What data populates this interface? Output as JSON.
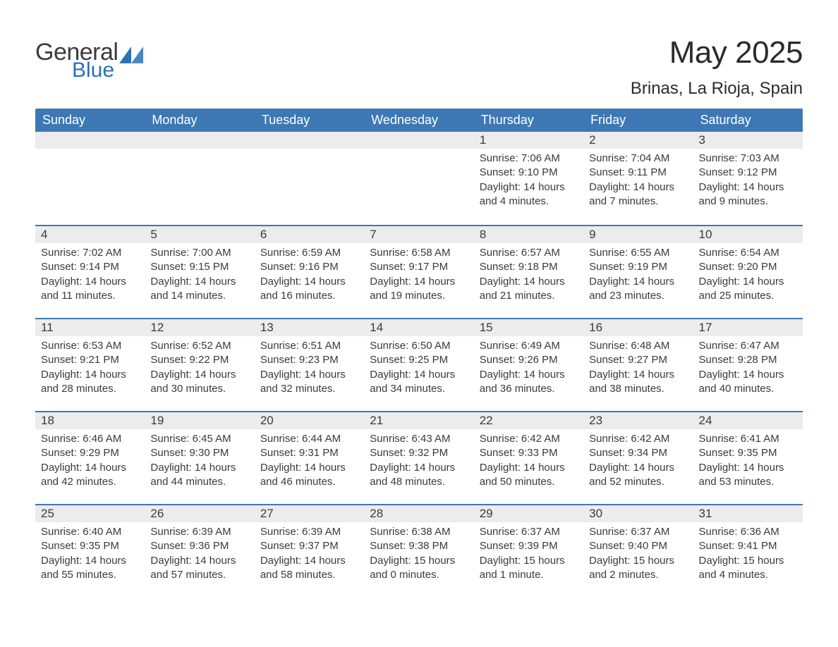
{
  "logo": {
    "word1": "General",
    "word2": "Blue",
    "tri_color": "#2a72b5"
  },
  "title": "May 2025",
  "location": "Brinas, La Rioja, Spain",
  "colors": {
    "header_bg": "#3d78b4",
    "header_text": "#ffffff",
    "daynum_bg": "#ececec",
    "row_border": "#3d78b4",
    "body_text": "#3a3a3a",
    "page_bg": "#ffffff"
  },
  "weekdays": [
    "Sunday",
    "Monday",
    "Tuesday",
    "Wednesday",
    "Thursday",
    "Friday",
    "Saturday"
  ],
  "weeks": [
    [
      null,
      null,
      null,
      null,
      {
        "n": "1",
        "sunrise": "7:06 AM",
        "sunset": "9:10 PM",
        "daylight": "14 hours and 4 minutes."
      },
      {
        "n": "2",
        "sunrise": "7:04 AM",
        "sunset": "9:11 PM",
        "daylight": "14 hours and 7 minutes."
      },
      {
        "n": "3",
        "sunrise": "7:03 AM",
        "sunset": "9:12 PM",
        "daylight": "14 hours and 9 minutes."
      }
    ],
    [
      {
        "n": "4",
        "sunrise": "7:02 AM",
        "sunset": "9:14 PM",
        "daylight": "14 hours and 11 minutes."
      },
      {
        "n": "5",
        "sunrise": "7:00 AM",
        "sunset": "9:15 PM",
        "daylight": "14 hours and 14 minutes."
      },
      {
        "n": "6",
        "sunrise": "6:59 AM",
        "sunset": "9:16 PM",
        "daylight": "14 hours and 16 minutes."
      },
      {
        "n": "7",
        "sunrise": "6:58 AM",
        "sunset": "9:17 PM",
        "daylight": "14 hours and 19 minutes."
      },
      {
        "n": "8",
        "sunrise": "6:57 AM",
        "sunset": "9:18 PM",
        "daylight": "14 hours and 21 minutes."
      },
      {
        "n": "9",
        "sunrise": "6:55 AM",
        "sunset": "9:19 PM",
        "daylight": "14 hours and 23 minutes."
      },
      {
        "n": "10",
        "sunrise": "6:54 AM",
        "sunset": "9:20 PM",
        "daylight": "14 hours and 25 minutes."
      }
    ],
    [
      {
        "n": "11",
        "sunrise": "6:53 AM",
        "sunset": "9:21 PM",
        "daylight": "14 hours and 28 minutes."
      },
      {
        "n": "12",
        "sunrise": "6:52 AM",
        "sunset": "9:22 PM",
        "daylight": "14 hours and 30 minutes."
      },
      {
        "n": "13",
        "sunrise": "6:51 AM",
        "sunset": "9:23 PM",
        "daylight": "14 hours and 32 minutes."
      },
      {
        "n": "14",
        "sunrise": "6:50 AM",
        "sunset": "9:25 PM",
        "daylight": "14 hours and 34 minutes."
      },
      {
        "n": "15",
        "sunrise": "6:49 AM",
        "sunset": "9:26 PM",
        "daylight": "14 hours and 36 minutes."
      },
      {
        "n": "16",
        "sunrise": "6:48 AM",
        "sunset": "9:27 PM",
        "daylight": "14 hours and 38 minutes."
      },
      {
        "n": "17",
        "sunrise": "6:47 AM",
        "sunset": "9:28 PM",
        "daylight": "14 hours and 40 minutes."
      }
    ],
    [
      {
        "n": "18",
        "sunrise": "6:46 AM",
        "sunset": "9:29 PM",
        "daylight": "14 hours and 42 minutes."
      },
      {
        "n": "19",
        "sunrise": "6:45 AM",
        "sunset": "9:30 PM",
        "daylight": "14 hours and 44 minutes."
      },
      {
        "n": "20",
        "sunrise": "6:44 AM",
        "sunset": "9:31 PM",
        "daylight": "14 hours and 46 minutes."
      },
      {
        "n": "21",
        "sunrise": "6:43 AM",
        "sunset": "9:32 PM",
        "daylight": "14 hours and 48 minutes."
      },
      {
        "n": "22",
        "sunrise": "6:42 AM",
        "sunset": "9:33 PM",
        "daylight": "14 hours and 50 minutes."
      },
      {
        "n": "23",
        "sunrise": "6:42 AM",
        "sunset": "9:34 PM",
        "daylight": "14 hours and 52 minutes."
      },
      {
        "n": "24",
        "sunrise": "6:41 AM",
        "sunset": "9:35 PM",
        "daylight": "14 hours and 53 minutes."
      }
    ],
    [
      {
        "n": "25",
        "sunrise": "6:40 AM",
        "sunset": "9:35 PM",
        "daylight": "14 hours and 55 minutes."
      },
      {
        "n": "26",
        "sunrise": "6:39 AM",
        "sunset": "9:36 PM",
        "daylight": "14 hours and 57 minutes."
      },
      {
        "n": "27",
        "sunrise": "6:39 AM",
        "sunset": "9:37 PM",
        "daylight": "14 hours and 58 minutes."
      },
      {
        "n": "28",
        "sunrise": "6:38 AM",
        "sunset": "9:38 PM",
        "daylight": "15 hours and 0 minutes."
      },
      {
        "n": "29",
        "sunrise": "6:37 AM",
        "sunset": "9:39 PM",
        "daylight": "15 hours and 1 minute."
      },
      {
        "n": "30",
        "sunrise": "6:37 AM",
        "sunset": "9:40 PM",
        "daylight": "15 hours and 2 minutes."
      },
      {
        "n": "31",
        "sunrise": "6:36 AM",
        "sunset": "9:41 PM",
        "daylight": "15 hours and 4 minutes."
      }
    ]
  ],
  "labels": {
    "sunrise": "Sunrise:",
    "sunset": "Sunset:",
    "daylight": "Daylight:"
  }
}
